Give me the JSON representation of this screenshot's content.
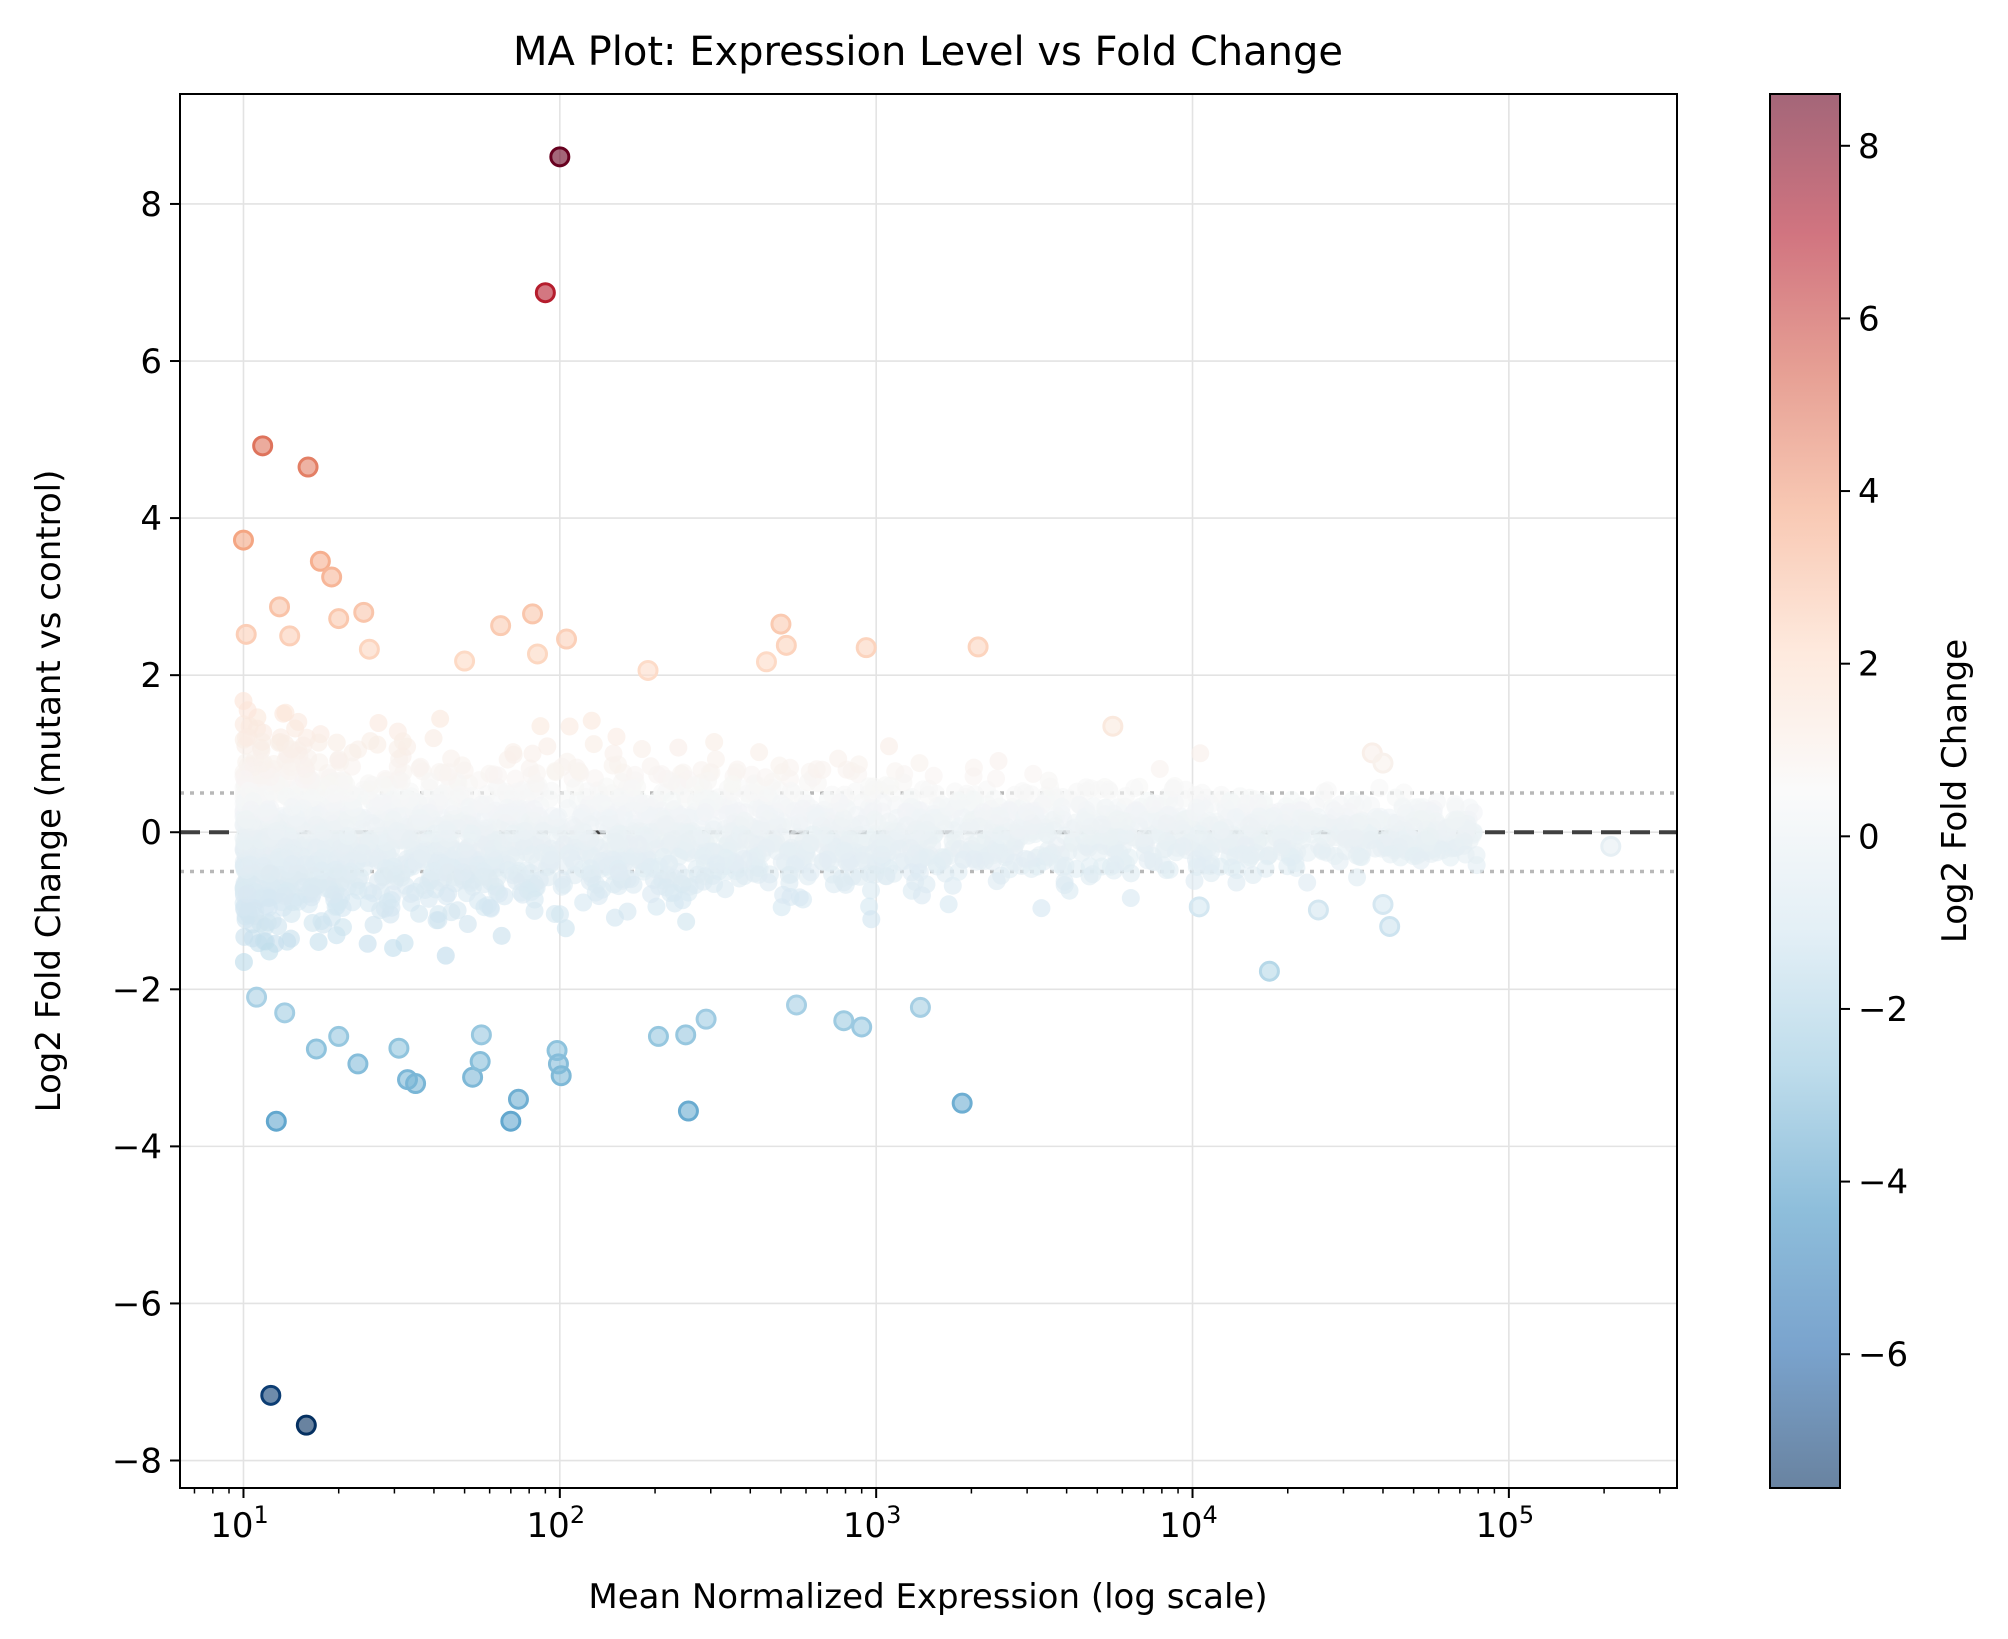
{
  "chart_data": {
    "type": "scatter",
    "title": "MA Plot: Expression Level vs Fold Change",
    "xlabel": "Mean Normalized Expression (log scale)",
    "ylabel": "Log2 Fold Change (mutant vs control)",
    "x_scale": "log",
    "xlim": [
      6.3,
      340000
    ],
    "ylim": [
      -8.35,
      9.4
    ],
    "x_ticks": [
      {
        "value": 10,
        "base": "10",
        "exp": "1"
      },
      {
        "value": 100,
        "base": "10",
        "exp": "2"
      },
      {
        "value": 1000,
        "base": "10",
        "exp": "3"
      },
      {
        "value": 10000,
        "base": "10",
        "exp": "4"
      },
      {
        "value": 100000,
        "base": "10",
        "exp": "5"
      }
    ],
    "y_ticks": [
      "−8",
      "−6",
      "−4",
      "−2",
      "0",
      "2",
      "4",
      "6",
      "8"
    ],
    "grid": true,
    "reference_lines": [
      {
        "y": 0,
        "style": "dashed",
        "color": "#404040"
      },
      {
        "y": 0.5,
        "style": "dotted",
        "color": "#b8b8b8"
      },
      {
        "y": -0.5,
        "style": "dotted",
        "color": "#b8b8b8"
      }
    ],
    "colormap": "RdBu_r",
    "color_range": [
      -7.55,
      8.6
    ],
    "colorbar": {
      "label": "Log2 Fold Change",
      "ticks": [
        "−6",
        "−4",
        "−2",
        "0",
        "2",
        "4",
        "6",
        "8"
      ]
    },
    "labeled_outliers": [
      {
        "x": 100,
        "y": 8.6
      },
      {
        "x": 90,
        "y": 6.87
      },
      {
        "x": 11.5,
        "y": 4.92
      },
      {
        "x": 16,
        "y": 4.65
      },
      {
        "x": 10,
        "y": 3.72
      },
      {
        "x": 17.5,
        "y": 3.45
      },
      {
        "x": 19,
        "y": 3.25
      },
      {
        "x": 13,
        "y": 2.87
      },
      {
        "x": 24,
        "y": 2.8
      },
      {
        "x": 82,
        "y": 2.78
      },
      {
        "x": 20,
        "y": 2.72
      },
      {
        "x": 65,
        "y": 2.63
      },
      {
        "x": 500,
        "y": 2.65
      },
      {
        "x": 10.2,
        "y": 2.52
      },
      {
        "x": 14,
        "y": 2.5
      },
      {
        "x": 105,
        "y": 2.46
      },
      {
        "x": 520,
        "y": 2.38
      },
      {
        "x": 930,
        "y": 2.35
      },
      {
        "x": 2100,
        "y": 2.36
      },
      {
        "x": 25,
        "y": 2.33
      },
      {
        "x": 85,
        "y": 2.27
      },
      {
        "x": 50,
        "y": 2.18
      },
      {
        "x": 450,
        "y": 2.17
      },
      {
        "x": 190,
        "y": 2.06
      },
      {
        "x": 5600,
        "y": 1.35
      },
      {
        "x": 37000,
        "y": 1.01
      },
      {
        "x": 40000,
        "y": 0.88
      },
      {
        "x": 17500,
        "y": -1.77
      },
      {
        "x": 40000,
        "y": -0.92
      },
      {
        "x": 42000,
        "y": -1.2
      },
      {
        "x": 25000,
        "y": -0.99
      },
      {
        "x": 10500,
        "y": -0.95
      },
      {
        "x": 210000,
        "y": -0.18
      },
      {
        "x": 11,
        "y": -2.1
      },
      {
        "x": 13.5,
        "y": -2.3
      },
      {
        "x": 17,
        "y": -2.76
      },
      {
        "x": 20,
        "y": -2.6
      },
      {
        "x": 23,
        "y": -2.95
      },
      {
        "x": 31,
        "y": -2.75
      },
      {
        "x": 33,
        "y": -3.15
      },
      {
        "x": 35,
        "y": -3.2
      },
      {
        "x": 53,
        "y": -3.12
      },
      {
        "x": 56,
        "y": -2.92
      },
      {
        "x": 56.5,
        "y": -2.58
      },
      {
        "x": 70,
        "y": -3.68
      },
      {
        "x": 74,
        "y": -3.4
      },
      {
        "x": 98,
        "y": -2.78
      },
      {
        "x": 99,
        "y": -2.95
      },
      {
        "x": 101,
        "y": -3.1
      },
      {
        "x": 205,
        "y": -2.6
      },
      {
        "x": 250,
        "y": -2.58
      },
      {
        "x": 255,
        "y": -3.55
      },
      {
        "x": 290,
        "y": -2.38
      },
      {
        "x": 560,
        "y": -2.2
      },
      {
        "x": 790,
        "y": -2.4
      },
      {
        "x": 900,
        "y": -2.48
      },
      {
        "x": 1380,
        "y": -2.23
      },
      {
        "x": 1870,
        "y": -3.45
      },
      {
        "x": 12.7,
        "y": -3.68
      },
      {
        "x": 12.2,
        "y": -7.17
      },
      {
        "x": 15.8,
        "y": -7.55
      }
    ],
    "bulk_description": "thousands of genes, x from 10 to 210000 (denser at low expression); y spread roughly ±2 at low expression, narrowing toward 0 at high expression; color from colormap by y value, alpha 0.6"
  }
}
